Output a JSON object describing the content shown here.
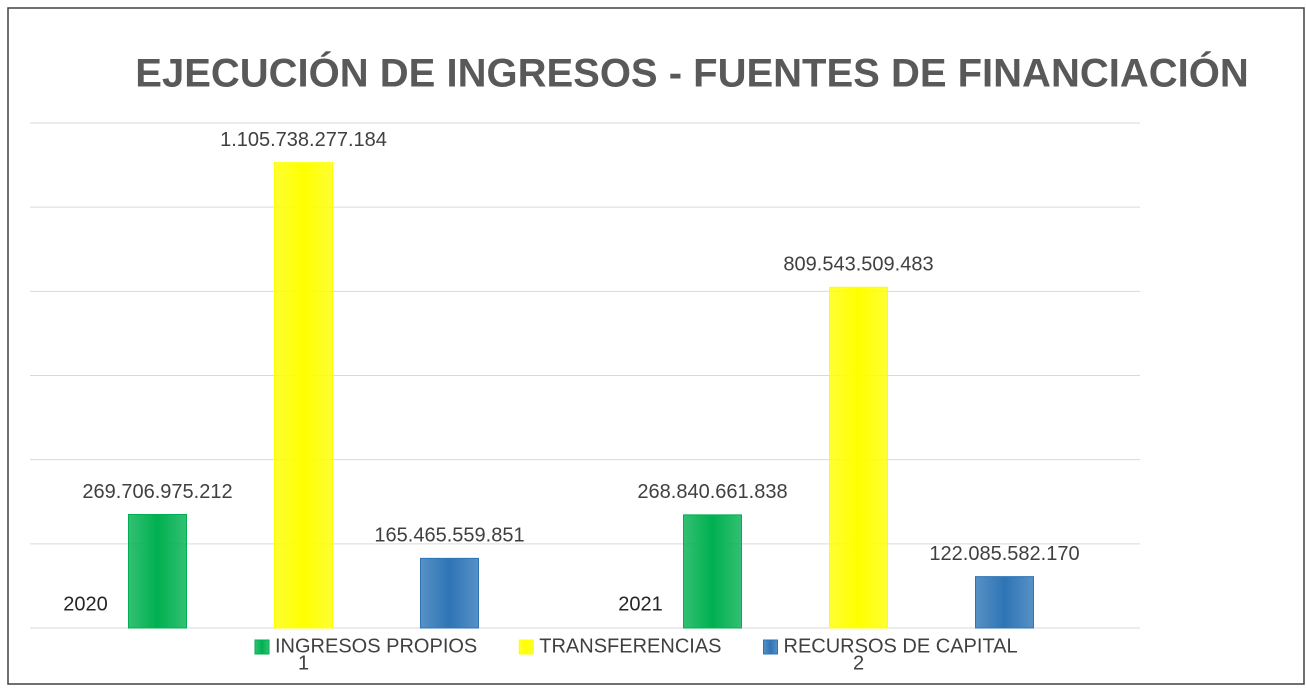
{
  "chart_data": {
    "type": "bar",
    "title": "EJECUCIÓN DE INGRESOS - FUENTES DE FINANCIACIÓN",
    "categories": [
      "1",
      "2"
    ],
    "annotations": [
      "2020",
      "2021"
    ],
    "series": [
      {
        "name": "INGRESOS PROPIOS",
        "color": "#00b050",
        "values": [
          269706975212,
          268840661838
        ],
        "value_labels": [
          "269.706.975.212",
          "268.840.661.838"
        ]
      },
      {
        "name": "TRANSFERENCIAS",
        "color": "#ffff00",
        "values": [
          1105738277184,
          809543509483
        ],
        "value_labels": [
          "1.105.738.277.184",
          "809.543.509.483"
        ]
      },
      {
        "name": "RECURSOS DE CAPITAL",
        "color": "#2e75b6",
        "values": [
          165465559851,
          122085582170
        ],
        "value_labels": [
          "165.465.559.851",
          "122.085.582.170"
        ]
      }
    ],
    "ylim": [
      0,
      1200000000000
    ],
    "yticks": [
      0,
      200000000000,
      400000000000,
      600000000000,
      800000000000,
      1000000000000,
      1200000000000
    ],
    "grid": true,
    "legend": "bottom"
  }
}
